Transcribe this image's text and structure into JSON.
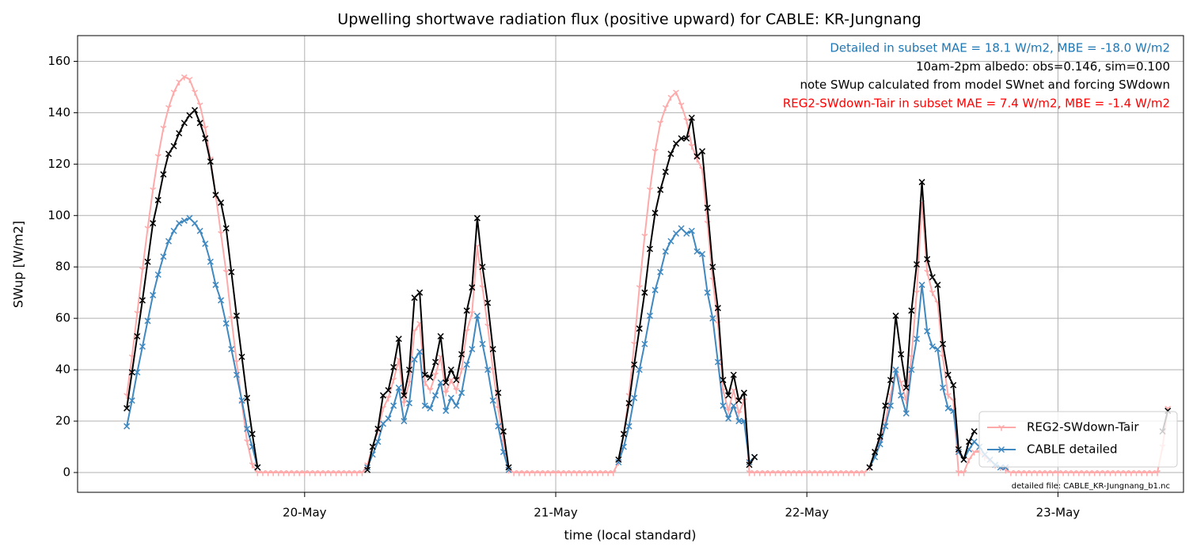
{
  "chart_data": {
    "type": "line",
    "title": "Upwelling shortwave radiation flux (positive upward) for CABLE: KR-Jungnang",
    "xlabel": "time (local standard)",
    "ylabel": "SWup [W/m2]",
    "xlim": [
      2.3,
      108
    ],
    "ylim": [
      -7.7,
      170
    ],
    "xticks": [
      {
        "value": 24,
        "label": "20-May"
      },
      {
        "value": 48,
        "label": "21-May"
      },
      {
        "value": 72,
        "label": "22-May"
      },
      {
        "value": 96,
        "label": "23-May"
      }
    ],
    "yticks": [
      0,
      20,
      40,
      60,
      80,
      100,
      120,
      140,
      160
    ],
    "grid": true,
    "legend": "lower right",
    "annotations": [
      {
        "text": "Detailed in subset MAE = 18.1 W/m2, MBE = -18.0 W/m2",
        "color": "#1f77b4"
      },
      {
        "text": "10am-2pm albedo: obs=0.146, sim=0.100",
        "color": "#000000"
      },
      {
        "text": "note SWup calculated from model SWnet and forcing SWdown",
        "color": "#000000"
      },
      {
        "text": "REG2-SWdown-Tair in subset MAE = 7.4 W/m2, MBE = -1.4 W/m2",
        "color": "#ff0000"
      }
    ],
    "note": "detailed file: CABLE_KR-Jungnang_b1.nc",
    "x": [
      7,
      7.5,
      8,
      8.5,
      9,
      9.5,
      10,
      10.5,
      11,
      11.5,
      12,
      12.5,
      13,
      13.5,
      14,
      14.5,
      15,
      15.5,
      16,
      16.5,
      17,
      17.5,
      18,
      18.5,
      19,
      19.5,
      20,
      20.5,
      21,
      21.5,
      22,
      22.5,
      23,
      23.5,
      24,
      24.5,
      25,
      25.5,
      26,
      26.5,
      27,
      27.5,
      28,
      28.5,
      29,
      29.5,
      30,
      30.5,
      31,
      31.5,
      32,
      32.5,
      33,
      33.5,
      34,
      34.5,
      35,
      35.5,
      36,
      36.5,
      37,
      37.5,
      38,
      38.5,
      39,
      39.5,
      40,
      40.5,
      41,
      41.5,
      42,
      42.5,
      43,
      43.5,
      44,
      44.5,
      45,
      45.5,
      46,
      46.5,
      47,
      47.5,
      48,
      48.5,
      49,
      49.5,
      50,
      50.5,
      51,
      51.5,
      52,
      52.5,
      53,
      53.5,
      54,
      54.5,
      55,
      55.5,
      56,
      56.5,
      57,
      57.5,
      58,
      58.5,
      59,
      59.5,
      60,
      60.5,
      61,
      61.5,
      62,
      62.5,
      63,
      63.5,
      64,
      64.5,
      65,
      65.5,
      66,
      66.5,
      67,
      67.5,
      68,
      68.5,
      69,
      69.5,
      70,
      70.5,
      71,
      71.5,
      72,
      72.5,
      73,
      73.5,
      74,
      74.5,
      75,
      75.5,
      76,
      76.5,
      77,
      77.5,
      78,
      78.5,
      79,
      79.5,
      80,
      80.5,
      81,
      81.5,
      82,
      82.5,
      83,
      83.5,
      84,
      84.5,
      85,
      85.5,
      86,
      86.5,
      87,
      87.5,
      88,
      88.5,
      89,
      89.5,
      90,
      90.5,
      91,
      91.5,
      92,
      92.5,
      93,
      93.5,
      94,
      94.5,
      95,
      95.5,
      96,
      96.5,
      97,
      97.5,
      98,
      98.5,
      99,
      99.5,
      100,
      100.5,
      101,
      101.5,
      102,
      102.5,
      103,
      103.5,
      104,
      104.5,
      105,
      105.5,
      106,
      106.5
    ],
    "series": [
      {
        "name": "REG2-SWdown-Tair",
        "color": "#ffaaaa",
        "marker": "tri",
        "values": [
          30,
          45,
          62,
          79,
          95,
          110,
          123,
          134,
          142,
          148,
          152,
          154,
          153,
          148,
          143,
          134,
          122,
          108,
          93,
          78,
          60,
          43,
          27,
          12,
          3,
          0,
          0,
          0,
          0,
          0,
          0,
          0,
          0,
          0,
          0,
          0,
          0,
          0,
          0,
          0,
          0,
          0,
          0,
          0,
          0,
          0,
          3,
          10,
          16,
          25,
          29,
          36,
          44,
          27,
          35,
          55,
          58,
          35,
          32,
          38,
          45,
          31,
          36,
          32,
          40,
          55,
          62,
          88,
          72,
          57,
          40,
          25,
          12,
          1,
          0,
          0,
          0,
          0,
          0,
          0,
          0,
          0,
          0,
          0,
          0,
          0,
          0,
          0,
          0,
          0,
          0,
          0,
          0,
          0,
          4,
          15,
          30,
          50,
          72,
          92,
          110,
          125,
          136,
          142,
          146,
          148,
          143,
          137,
          127,
          122,
          118,
          97,
          75,
          58,
          32,
          24,
          32,
          23,
          28,
          0,
          0,
          0,
          0,
          0,
          0,
          0,
          0,
          0,
          0,
          0,
          0,
          0,
          0,
          0,
          0,
          0,
          0,
          0,
          0,
          0,
          0,
          0,
          2,
          8,
          12,
          20,
          30,
          40,
          35,
          28,
          45,
          70,
          105,
          78,
          70,
          66,
          45,
          30,
          28,
          0,
          0,
          5,
          8,
          8,
          6,
          5,
          3,
          2,
          1,
          0,
          0,
          0,
          0,
          0,
          0,
          0,
          0,
          0,
          0,
          0,
          0,
          0,
          0,
          0,
          0,
          0,
          0,
          0,
          0,
          0,
          0,
          0,
          0,
          0,
          0,
          0,
          0,
          0,
          10,
          25
        ]
      },
      {
        "name": "CABLE detailed",
        "color": "#3f88c0",
        "marker": "x",
        "values": [
          18,
          28,
          39,
          49,
          59,
          69,
          77,
          84,
          90,
          94,
          97,
          98,
          99,
          97,
          94,
          89,
          82,
          73,
          67,
          58,
          48,
          38,
          28,
          17,
          10,
          2,
          null,
          null,
          null,
          null,
          null,
          null,
          null,
          null,
          null,
          null,
          null,
          null,
          null,
          null,
          null,
          null,
          null,
          null,
          null,
          null,
          2,
          7,
          12,
          19,
          21,
          26,
          33,
          20,
          27,
          44,
          47,
          26,
          25,
          30,
          35,
          24,
          29,
          26,
          31,
          42,
          48,
          61,
          50,
          40,
          28,
          18,
          8,
          1,
          null,
          null,
          null,
          null,
          null,
          null,
          null,
          null,
          null,
          null,
          null,
          null,
          null,
          null,
          null,
          null,
          null,
          null,
          null,
          null,
          4,
          10,
          18,
          29,
          40,
          50,
          61,
          71,
          78,
          86,
          90,
          93,
          95,
          93,
          94,
          86,
          85,
          70,
          60,
          43,
          26,
          21,
          26,
          20,
          20,
          4,
          6,
          null,
          null,
          null,
          null,
          null,
          null,
          null,
          null,
          null,
          null,
          null,
          null,
          null,
          null,
          null,
          null,
          null,
          null,
          null,
          null,
          null,
          2,
          6,
          11,
          18,
          26,
          40,
          30,
          23,
          40,
          52,
          73,
          55,
          49,
          48,
          33,
          25,
          24,
          8,
          5,
          9,
          12,
          10,
          7,
          5,
          3,
          2,
          2,
          null,
          null,
          null,
          null,
          null,
          null,
          null,
          null,
          null,
          null,
          null,
          null,
          null,
          null,
          null,
          null,
          null,
          null,
          null,
          null,
          null,
          null,
          null,
          null,
          null,
          null,
          null,
          null,
          null,
          null,
          null
        ]
      },
      {
        "color": "#000000",
        "marker": "x",
        "values": [
          25,
          39,
          53,
          67,
          82,
          97,
          106,
          116,
          124,
          127,
          132,
          136,
          139,
          141,
          136,
          130,
          121,
          108,
          105,
          95,
          78,
          61,
          45,
          29,
          15,
          2,
          null,
          null,
          null,
          null,
          null,
          null,
          null,
          null,
          null,
          null,
          null,
          null,
          null,
          null,
          null,
          null,
          null,
          null,
          null,
          null,
          1,
          10,
          17,
          30,
          32,
          41,
          52,
          30,
          40,
          68,
          70,
          38,
          37,
          43,
          53,
          35,
          40,
          36,
          46,
          63,
          72,
          99,
          80,
          66,
          48,
          31,
          16,
          2,
          null,
          null,
          null,
          null,
          null,
          null,
          null,
          null,
          null,
          null,
          null,
          null,
          null,
          null,
          null,
          null,
          null,
          null,
          null,
          null,
          5,
          15,
          27,
          42,
          56,
          70,
          87,
          101,
          110,
          117,
          124,
          128,
          130,
          130,
          138,
          123,
          125,
          103,
          80,
          64,
          36,
          30,
          38,
          28,
          31,
          3,
          6,
          null,
          null,
          null,
          null,
          null,
          null,
          null,
          null,
          null,
          null,
          null,
          null,
          null,
          null,
          null,
          null,
          null,
          null,
          null,
          null,
          null,
          2,
          8,
          14,
          26,
          36,
          61,
          46,
          33,
          63,
          81,
          113,
          83,
          76,
          73,
          50,
          38,
          34,
          9,
          5,
          12,
          16,
          null,
          null,
          null,
          null,
          null,
          null,
          null,
          null,
          null,
          null,
          null,
          null,
          null,
          null,
          null,
          null,
          null,
          null,
          null,
          null,
          null,
          null,
          null,
          null,
          null,
          null,
          null,
          null,
          null,
          null,
          null,
          null,
          null,
          null,
          null,
          16,
          24
        ]
      }
    ]
  }
}
